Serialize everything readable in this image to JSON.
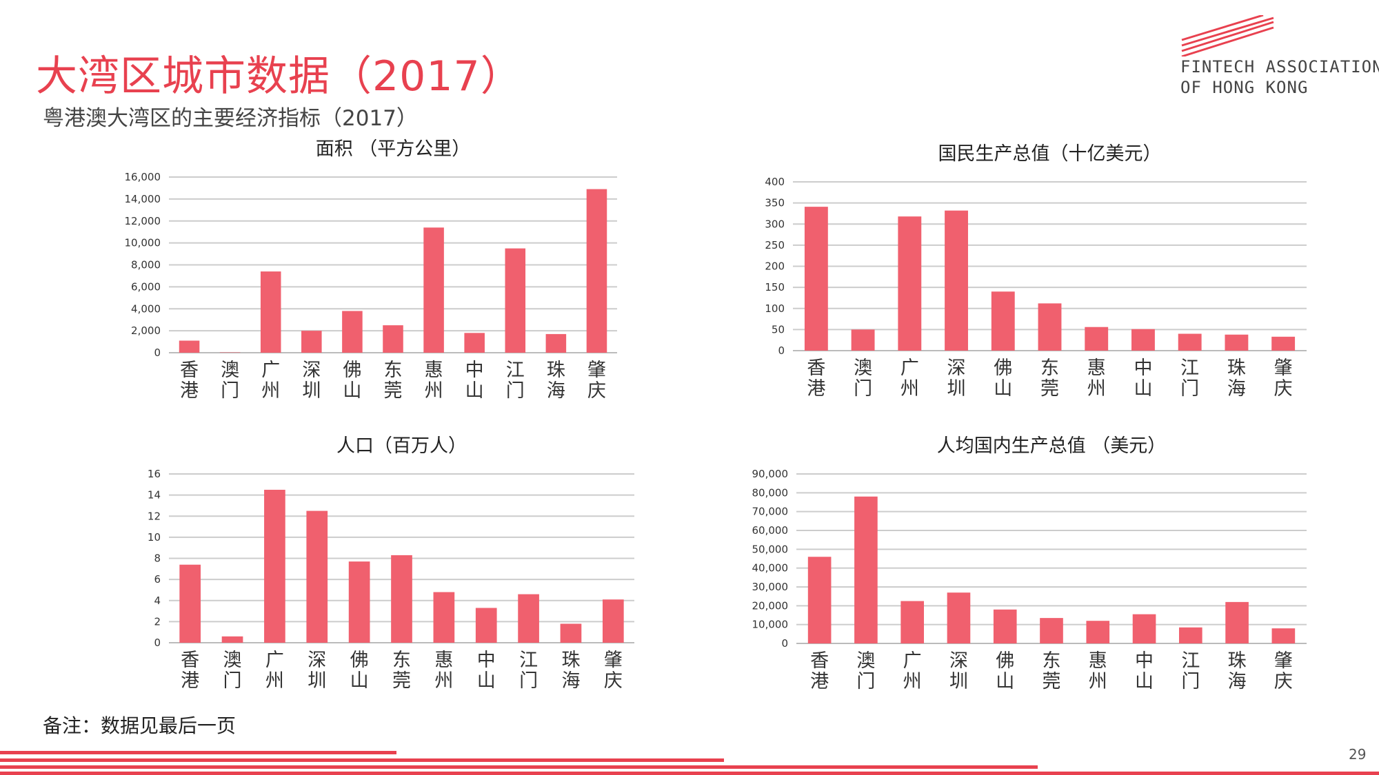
{
  "header": {
    "title": "大湾区城市数据（2017）",
    "subtitle": "粤港澳大湾区的主要经济指标（2017）"
  },
  "logo": {
    "line1": "FINTECH ASSOCIATION",
    "line2": "OF HONG KONG",
    "color": "#e8414f"
  },
  "footer": {
    "note": "备注：数据见最后一页",
    "page_number": "29"
  },
  "colors": {
    "accent": "#e8414f",
    "bar": "#f0606e",
    "grid": "#cccccc"
  },
  "chart_data": [
    {
      "type": "bar",
      "title": "面积 （平方公里）",
      "categories": [
        "香港",
        "澳门",
        "广州",
        "深圳",
        "佛山",
        "东莞",
        "惠州",
        "中山",
        "江门",
        "珠海",
        "肇庆"
      ],
      "values": [
        1100,
        30,
        7400,
        2000,
        3800,
        2500,
        11400,
        1800,
        9500,
        1700,
        14900
      ],
      "ylim": [
        0,
        16000
      ],
      "yticks": [
        0,
        2000,
        4000,
        6000,
        8000,
        10000,
        12000,
        14000,
        16000
      ],
      "ytick_labels": [
        "0",
        "2,000",
        "4,000",
        "6,000",
        "8,000",
        "10,000",
        "12,000",
        "14,000",
        "16,000"
      ],
      "grid": true
    },
    {
      "type": "bar",
      "title": "国民生产总值（十亿美元）",
      "categories": [
        "香港",
        "澳门",
        "广州",
        "深圳",
        "佛山",
        "东莞",
        "惠州",
        "中山",
        "江门",
        "珠海",
        "肇庆"
      ],
      "values": [
        341,
        50,
        318,
        332,
        140,
        112,
        56,
        51,
        40,
        38,
        33
      ],
      "ylim": [
        0,
        400
      ],
      "yticks": [
        0,
        50,
        100,
        150,
        200,
        250,
        300,
        350,
        400
      ],
      "ytick_labels": [
        "0",
        "50",
        "100",
        "150",
        "200",
        "250",
        "300",
        "350",
        "400"
      ],
      "grid": true
    },
    {
      "type": "bar",
      "title": "人口（百万人）",
      "categories": [
        "香港",
        "澳门",
        "广州",
        "深圳",
        "佛山",
        "东莞",
        "惠州",
        "中山",
        "江门",
        "珠海",
        "肇庆"
      ],
      "values": [
        7.4,
        0.6,
        14.5,
        12.5,
        7.7,
        8.3,
        4.8,
        3.3,
        4.6,
        1.8,
        4.1
      ],
      "ylim": [
        0,
        16
      ],
      "yticks": [
        0,
        2,
        4,
        6,
        8,
        10,
        12,
        14,
        16
      ],
      "ytick_labels": [
        "0",
        "2",
        "4",
        "6",
        "8",
        "10",
        "12",
        "14",
        "16"
      ],
      "grid": true
    },
    {
      "type": "bar",
      "title": "人均国内生产总值 （美元）",
      "categories": [
        "香港",
        "澳门",
        "广州",
        "深圳",
        "佛山",
        "东莞",
        "惠州",
        "中山",
        "江门",
        "珠海",
        "肇庆"
      ],
      "values": [
        46000,
        78000,
        22500,
        27000,
        18000,
        13500,
        12000,
        15500,
        8500,
        22000,
        8000
      ],
      "ylim": [
        0,
        90000
      ],
      "yticks": [
        0,
        10000,
        20000,
        30000,
        40000,
        50000,
        60000,
        70000,
        80000,
        90000
      ],
      "ytick_labels": [
        "0",
        "10,000",
        "20,000",
        "30,000",
        "40,000",
        "50,000",
        "60,000",
        "70,000",
        "80,000",
        "90,000"
      ],
      "grid": true
    }
  ]
}
